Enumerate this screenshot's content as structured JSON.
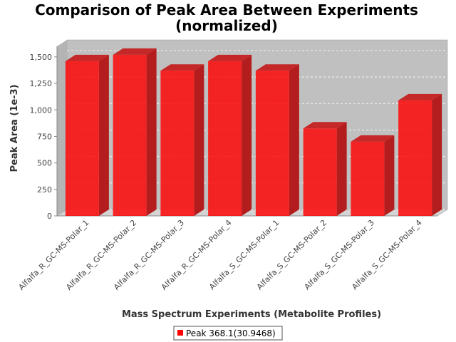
{
  "chart_data": {
    "type": "bar",
    "title": [
      "Comparison of Peak Area Between Experiments",
      "(normalized)"
    ],
    "xlabel": "Mass Spectrum Experiments (Metabolite Profiles)",
    "ylabel": "Peak Area (1e-3)",
    "categories": [
      "Alfalfa_R_GC-MS-Polar_1",
      "Alfalfa_R_GC-MS-Polar_2",
      "Alfalfa_R_GC-MS-Polar_3",
      "Alfalfa_R_GC-MS-Polar_4",
      "Alfalfa_S_GC-MS-Polar_1",
      "Alfalfa_S_GC-MS-Polar_2",
      "Alfalfa_S_GC-MS-Polar_3",
      "Alfalfa_S_GC-MS-Polar_4"
    ],
    "series": [
      {
        "name": "Peak 368.1(30.9468)",
        "color": "#ff0000",
        "values": [
          1460,
          1520,
          1370,
          1460,
          1370,
          825,
          700,
          1090
        ]
      }
    ],
    "ylim": [
      0,
      1600
    ],
    "yticks": [
      0,
      250,
      500,
      750,
      1000,
      1250,
      1500
    ],
    "ytick_labels": [
      "0",
      "250",
      "500",
      "750",
      "1,000",
      "1,250",
      "1,500"
    ],
    "grid": true,
    "style": "3d",
    "legend_position": "bottom"
  }
}
